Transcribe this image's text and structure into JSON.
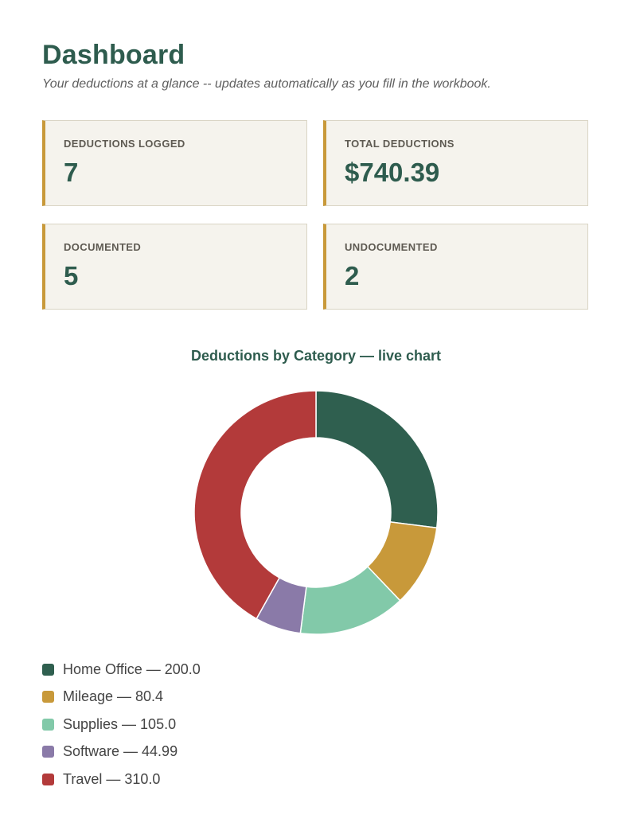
{
  "header": {
    "title": "Dashboard",
    "subtitle": "Your deductions at a glance -- updates automatically as you fill in the workbook."
  },
  "cards": [
    {
      "label": "DEDUCTIONS LOGGED",
      "value": "7"
    },
    {
      "label": "TOTAL DEDUCTIONS",
      "value": "$740.39"
    },
    {
      "label": "DOCUMENTED",
      "value": "5"
    },
    {
      "label": "UNDOCUMENTED",
      "value": "2"
    }
  ],
  "colors": {
    "brand": "#2e5c4e",
    "card_accent": "#c8993a",
    "card_bg": "#f5f3ed"
  },
  "chart_data": {
    "type": "pie",
    "title": "Deductions by Category — live chart",
    "categories": [
      "Home Office",
      "Mileage",
      "Supplies",
      "Software",
      "Travel"
    ],
    "values": [
      200.0,
      80.4,
      105.0,
      44.99,
      310.0
    ],
    "colors": [
      "#2f5f4f",
      "#c8993a",
      "#82c9a9",
      "#8a7aa8",
      "#b33a3a"
    ],
    "legend_labels": [
      "Home Office — 200.0",
      "Mileage — 80.4",
      "Supplies — 105.0",
      "Software — 44.99",
      "Travel — 310.0"
    ],
    "donut": true,
    "legend": "bottom-left"
  }
}
